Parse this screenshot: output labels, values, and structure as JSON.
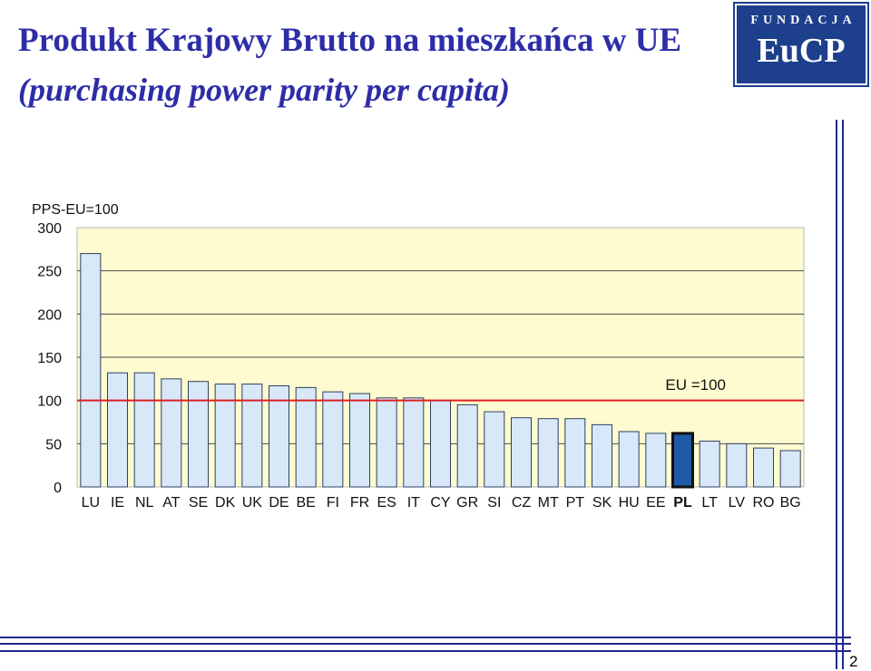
{
  "slide": {
    "title": "Produkt Krajowy Brutto na mieszkańca w UE",
    "subtitle": "(purchasing power parity per capita)",
    "page_number": "2"
  },
  "logo": {
    "top_text": "FUNDACJA",
    "main_text": "EuCP"
  },
  "colors": {
    "title": "#2d2da8",
    "plot_background": "#fdfbcf",
    "bar_fill": "#d9e8f8",
    "bar_stroke": "#2f3f63",
    "highlight_bar_fill": "#1e5aa8",
    "reference_line": "#dd1f26",
    "logo_background": "#1d3f8c",
    "rule_lines": "#1e2a8a"
  },
  "chart_data": {
    "type": "bar",
    "title": "",
    "ylabel": "PPS-EU=100",
    "xlabel": "",
    "ylim": [
      0,
      300
    ],
    "yticks": [
      0,
      50,
      100,
      150,
      200,
      250,
      300
    ],
    "grid": true,
    "categories": [
      "LU",
      "IE",
      "NL",
      "AT",
      "SE",
      "DK",
      "UK",
      "DE",
      "BE",
      "FI",
      "FR",
      "ES",
      "IT",
      "CY",
      "GR",
      "SI",
      "CZ",
      "MT",
      "PT",
      "SK",
      "HU",
      "EE",
      "PL",
      "LT",
      "LV",
      "RO",
      "BG"
    ],
    "values": [
      270,
      132,
      132,
      125,
      122,
      119,
      119,
      117,
      115,
      110,
      108,
      103,
      103,
      100,
      95,
      87,
      80,
      79,
      79,
      72,
      64,
      62,
      62,
      53,
      50,
      45,
      42
    ],
    "highlight": "PL",
    "reference_line": {
      "value": 100,
      "label": "EU =100"
    }
  }
}
